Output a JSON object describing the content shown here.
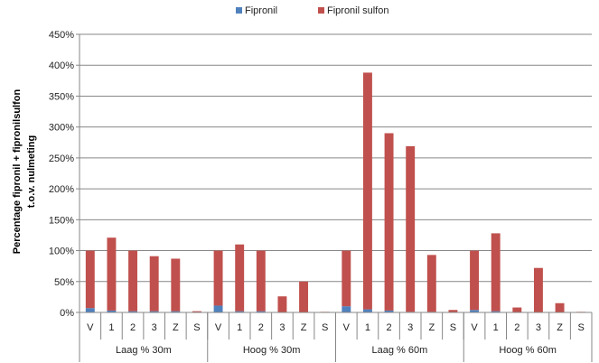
{
  "chart_data": {
    "type": "bar",
    "stacked": true,
    "ylabel_lines": [
      "Percentage fipronil + fipronilsulfon",
      "t.o.v. nulmeting"
    ],
    "ylim": [
      0,
      450
    ],
    "yticks": [
      0,
      50,
      100,
      150,
      200,
      250,
      300,
      350,
      400,
      450
    ],
    "ytick_labels": [
      "0%",
      "50%",
      "100%",
      "150%",
      "200%",
      "250%",
      "300%",
      "350%",
      "400%",
      "450%"
    ],
    "grid": true,
    "legend_position": "top",
    "groups": [
      {
        "label": "Laag % 30m",
        "categories": [
          "V",
          "1",
          "2",
          "3",
          "Z",
          "S"
        ]
      },
      {
        "label": "Hoog % 30m",
        "categories": [
          "V",
          "1",
          "2",
          "3",
          "Z",
          "S"
        ]
      },
      {
        "label": "Laag % 60m",
        "categories": [
          "V",
          "1",
          "2",
          "3",
          "Z",
          "S"
        ]
      },
      {
        "label": "Hoog % 60m",
        "categories": [
          "V",
          "1",
          "2",
          "3",
          "Z",
          "S"
        ]
      }
    ],
    "series": [
      {
        "name": "Fipronil",
        "color": "#4F81BD",
        "values": [
          7,
          3,
          2,
          2,
          2,
          0,
          11,
          2,
          2,
          0,
          0,
          0,
          10,
          5,
          3,
          1,
          1,
          0,
          4,
          2,
          0,
          0,
          0,
          0
        ]
      },
      {
        "name": "Fipronil sulfon",
        "color": "#C0504D",
        "values": [
          93,
          118,
          98,
          89,
          85,
          2,
          89,
          108,
          98,
          26,
          50,
          1,
          90,
          383,
          287,
          268,
          92,
          4,
          96,
          126,
          8,
          72,
          15,
          1
        ]
      }
    ]
  }
}
